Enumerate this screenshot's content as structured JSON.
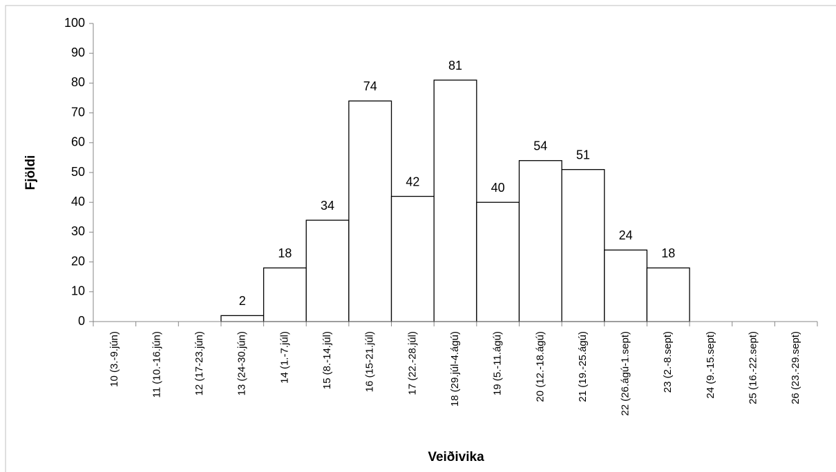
{
  "chart_data": {
    "type": "bar",
    "x_label": "Veiðivika",
    "y_label": "Fjöldi",
    "categories": [
      "10 (3.-9.jún)",
      "11 (10.-16.jún)",
      "12 (17-23.jún)",
      "13 (24-30.jún)",
      "14 (1.-7.júl)",
      "15 (8.-14.júl)",
      "16 (15-21.júl)",
      "17 (22.-28.júl)",
      "18 (29.júl-4.ágú)",
      "19 (5.-11.ágú)",
      "20 (12.-18.ágú)",
      "21 (19.-25.ágú)",
      "22 (26.ágú-1.sept)",
      "23 (2.-8.sept)",
      "24 (9.-15.sept)",
      "25 (16.-22.sept)",
      "26 (23.-29.sept)"
    ],
    "values": [
      null,
      null,
      null,
      2,
      18,
      34,
      74,
      42,
      81,
      40,
      54,
      51,
      24,
      18,
      null,
      null,
      null
    ],
    "color": "#ffffff",
    "edge_color": "#000000",
    "ylim": [
      0,
      100
    ],
    "yticks": [
      0,
      10,
      20,
      30,
      40,
      50,
      60,
      70,
      80,
      90,
      100
    ],
    "grid": false
  }
}
